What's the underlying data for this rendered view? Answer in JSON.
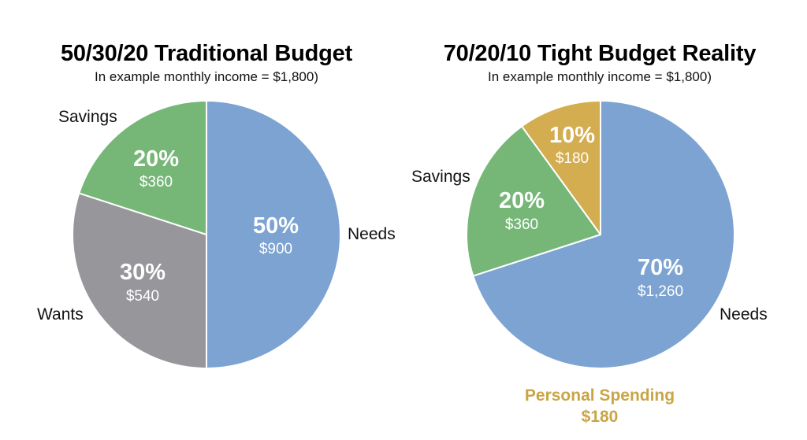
{
  "chart_data": [
    {
      "type": "pie",
      "title": "50/30/20 Traditional Budget",
      "subtitle": "In example monthly income = $1,800)",
      "slices": [
        {
          "label": "Needs",
          "percent": "50%",
          "amount": "$900",
          "value": 900,
          "color": "#7ca3d1"
        },
        {
          "label": "Wants",
          "percent": "30%",
          "amount": "$540",
          "value": 540,
          "color": "#97979b"
        },
        {
          "label": "Savings",
          "percent": "20%",
          "amount": "$360",
          "value": 360,
          "color": "#76b778"
        }
      ]
    },
    {
      "type": "pie",
      "title": "70/20/10 Tight Budget Reality",
      "subtitle": "In example monthly income = $1,800)",
      "slices": [
        {
          "label": "Needs",
          "percent": "70%",
          "amount": "$1,260",
          "value": 1260,
          "color": "#7ca3d1"
        },
        {
          "label": "Savings",
          "percent": "20%",
          "amount": "$360",
          "value": 360,
          "color": "#76b778"
        },
        {
          "label": "Personal Spending",
          "percent": "10%",
          "amount": "$180",
          "value": 180,
          "color": "#d3ad4f"
        }
      ],
      "annotation": {
        "label": "Personal Spending",
        "value": "$180",
        "color": "#c9a545"
      }
    }
  ]
}
